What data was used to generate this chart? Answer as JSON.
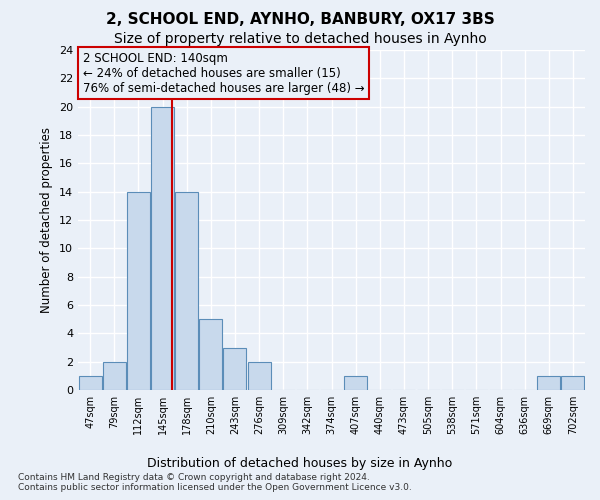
{
  "title1": "2, SCHOOL END, AYNHO, BANBURY, OX17 3BS",
  "title2": "Size of property relative to detached houses in Aynho",
  "xlabel": "Distribution of detached houses by size in Aynho",
  "ylabel": "Number of detached properties",
  "footnote": "Contains HM Land Registry data © Crown copyright and database right 2024.\nContains public sector information licensed under the Open Government Licence v3.0.",
  "bin_labels": [
    "47sqm",
    "79sqm",
    "112sqm",
    "145sqm",
    "178sqm",
    "210sqm",
    "243sqm",
    "276sqm",
    "309sqm",
    "342sqm",
    "374sqm",
    "407sqm",
    "440sqm",
    "473sqm",
    "505sqm",
    "538sqm",
    "571sqm",
    "604sqm",
    "636sqm",
    "669sqm",
    "702sqm"
  ],
  "bar_values": [
    1,
    2,
    14,
    20,
    14,
    5,
    3,
    2,
    0,
    0,
    0,
    1,
    0,
    0,
    0,
    0,
    0,
    0,
    0,
    1,
    1
  ],
  "bar_color": "#c8d9ec",
  "bar_edgecolor": "#5b8db8",
  "vline_x": 3.38,
  "vline_color": "#cc0000",
  "annotation_text": "2 SCHOOL END: 140sqm\n← 24% of detached houses are smaller (15)\n76% of semi-detached houses are larger (48) →",
  "annotation_box_color": "#cc0000",
  "annotation_fontsize": 8.5,
  "ylim": [
    0,
    24
  ],
  "yticks": [
    0,
    2,
    4,
    6,
    8,
    10,
    12,
    14,
    16,
    18,
    20,
    22,
    24
  ],
  "background_color": "#eaf0f8",
  "grid_color": "#ffffff",
  "title1_fontsize": 11,
  "title2_fontsize": 10,
  "xlabel_fontsize": 9,
  "ylabel_fontsize": 8.5,
  "footnote_fontsize": 6.5
}
